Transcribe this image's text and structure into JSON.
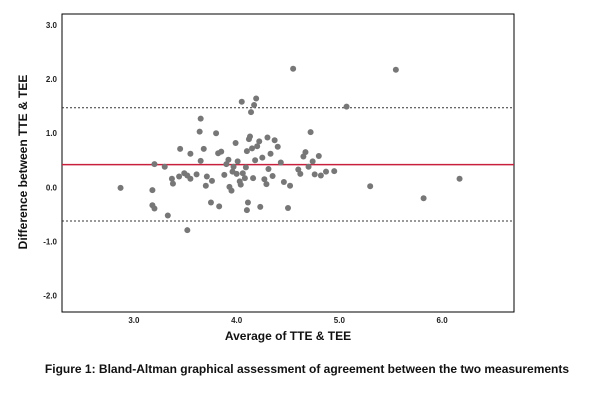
{
  "chart_data": {
    "type": "scatter",
    "title": "",
    "xlabel": "Average of TTE & TEE",
    "ylabel": "Difference between TTE & TEE",
    "xlim": [
      2.3,
      6.7
    ],
    "ylim": [
      -2.3,
      3.2
    ],
    "x_ticks": [
      "3.0",
      "4.0",
      "5.0",
      "6.0"
    ],
    "y_ticks": [
      "3.0",
      "2.0",
      "1.0",
      "0.0",
      "-1.0",
      "-2.0"
    ],
    "grid": false,
    "legend": "none",
    "mean_difference": 0.42,
    "upper_limit_of_agreement": 1.47,
    "lower_limit_of_agreement": -0.62,
    "colors": {
      "points": "#777777",
      "mean_line": "#c8203c",
      "limit_lines": "#333333",
      "frame": "#000000",
      "plot_background": "#ffffff"
    },
    "points": [
      [
        2.87,
        -0.01
      ],
      [
        3.18,
        -0.05
      ],
      [
        3.18,
        -0.33
      ],
      [
        3.2,
        -0.39
      ],
      [
        3.2,
        0.43
      ],
      [
        3.3,
        0.38
      ],
      [
        3.33,
        -0.52
      ],
      [
        3.37,
        0.16
      ],
      [
        3.38,
        0.07
      ],
      [
        3.44,
        0.2
      ],
      [
        3.45,
        0.71
      ],
      [
        3.49,
        0.26
      ],
      [
        3.52,
        0.22
      ],
      [
        3.52,
        -0.79
      ],
      [
        3.55,
        0.62
      ],
      [
        3.55,
        0.16
      ],
      [
        3.61,
        0.24
      ],
      [
        3.64,
        1.03
      ],
      [
        3.65,
        1.27
      ],
      [
        3.65,
        0.49
      ],
      [
        3.68,
        0.71
      ],
      [
        3.7,
        0.03
      ],
      [
        3.71,
        0.2
      ],
      [
        3.75,
        -0.28
      ],
      [
        3.76,
        0.12
      ],
      [
        3.8,
        1.0
      ],
      [
        3.82,
        0.63
      ],
      [
        3.83,
        -0.35
      ],
      [
        3.85,
        0.66
      ],
      [
        3.88,
        0.23
      ],
      [
        3.9,
        0.43
      ],
      [
        3.92,
        0.51
      ],
      [
        3.93,
        0.01
      ],
      [
        3.95,
        -0.06
      ],
      [
        3.96,
        0.29
      ],
      [
        3.97,
        0.38
      ],
      [
        3.99,
        0.82
      ],
      [
        4.0,
        0.25
      ],
      [
        4.01,
        0.48
      ],
      [
        4.03,
        0.11
      ],
      [
        4.04,
        0.05
      ],
      [
        4.05,
        1.58
      ],
      [
        4.06,
        0.26
      ],
      [
        4.08,
        0.17
      ],
      [
        4.09,
        0.37
      ],
      [
        4.1,
        0.67
      ],
      [
        4.1,
        -0.42
      ],
      [
        4.11,
        -0.28
      ],
      [
        4.12,
        0.89
      ],
      [
        4.13,
        0.94
      ],
      [
        4.14,
        1.39
      ],
      [
        4.15,
        0.72
      ],
      [
        4.16,
        0.17
      ],
      [
        4.17,
        1.52
      ],
      [
        4.18,
        0.5
      ],
      [
        4.19,
        1.64
      ],
      [
        4.2,
        0.76
      ],
      [
        4.22,
        0.85
      ],
      [
        4.23,
        -0.36
      ],
      [
        4.25,
        0.55
      ],
      [
        4.27,
        0.15
      ],
      [
        4.29,
        0.06
      ],
      [
        4.3,
        0.92
      ],
      [
        4.31,
        0.34
      ],
      [
        4.33,
        0.62
      ],
      [
        4.35,
        0.21
      ],
      [
        4.37,
        0.87
      ],
      [
        4.4,
        0.75
      ],
      [
        4.43,
        0.46
      ],
      [
        4.46,
        0.1
      ],
      [
        4.5,
        -0.38
      ],
      [
        4.52,
        0.03
      ],
      [
        4.55,
        2.19
      ],
      [
        4.6,
        0.33
      ],
      [
        4.62,
        0.25
      ],
      [
        4.65,
        0.57
      ],
      [
        4.67,
        0.65
      ],
      [
        4.7,
        0.38
      ],
      [
        4.72,
        1.02
      ],
      [
        4.74,
        0.48
      ],
      [
        4.76,
        0.24
      ],
      [
        4.8,
        0.58
      ],
      [
        4.82,
        0.22
      ],
      [
        4.87,
        0.29
      ],
      [
        4.95,
        0.3
      ],
      [
        5.07,
        1.49
      ],
      [
        5.3,
        0.02
      ],
      [
        5.55,
        2.17
      ],
      [
        5.82,
        -0.2
      ],
      [
        6.17,
        0.16
      ]
    ]
  },
  "figure": {
    "caption": "Figure 1: Bland-Altman graphical assessment of agreement between the two measurements"
  }
}
